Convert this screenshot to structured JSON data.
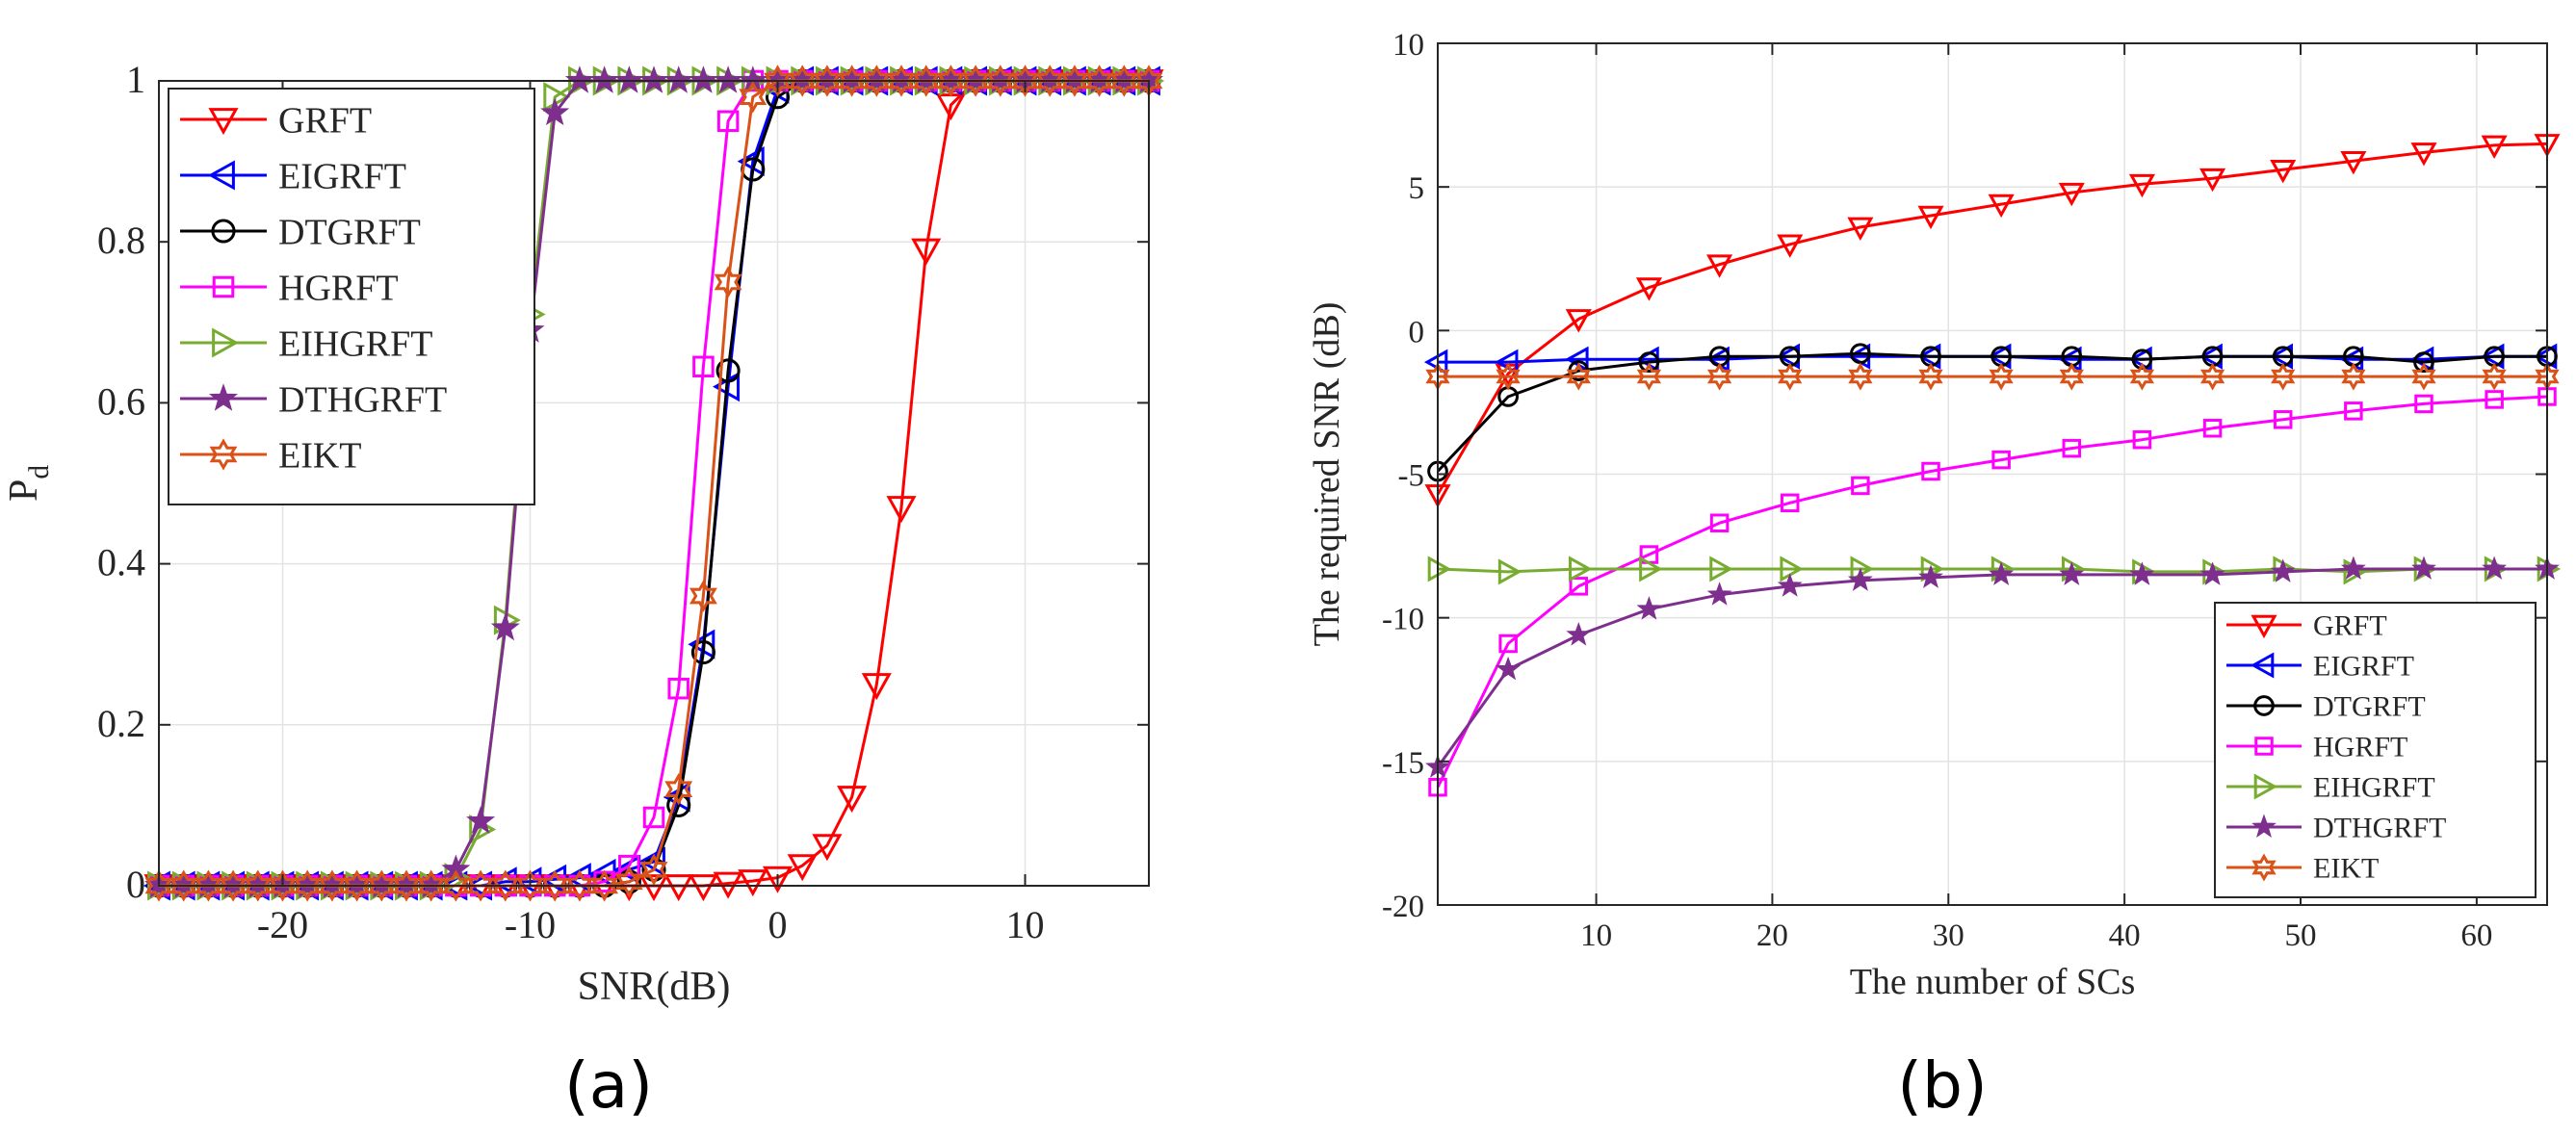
{
  "colors": {
    "GRFT": "#ff0000",
    "EIGRFT": "#0000ff",
    "DTGRFT": "#000000",
    "HGRFT": "#ff00ff",
    "EIHGRFT": "#77ac30",
    "DTHGRFT": "#7e2f8e",
    "EIKT": "#d95319"
  },
  "chart_data": [
    {
      "type": "line",
      "panel_label": "(a)",
      "title": "",
      "xlabel": "SNR(dB)",
      "ylabel": "P",
      "ylabel_subscript": "d",
      "xlim": [
        -25,
        15
      ],
      "ylim": [
        0,
        1
      ],
      "xticks": [
        -20,
        -10,
        0,
        10
      ],
      "xtick_labels": [
        "-20",
        "-10",
        "0",
        "10"
      ],
      "yticks": [
        0,
        0.2,
        0.4,
        0.6,
        0.8,
        1
      ],
      "ytick_labels": [
        "0",
        "0.2",
        "0.4",
        "0.6",
        "0.8",
        "1"
      ],
      "grid": true,
      "legend_position": "top-left",
      "x": [
        -25,
        -24,
        -23,
        -22,
        -21,
        -20,
        -19,
        -18,
        -17,
        -16,
        -15,
        -14,
        -13,
        -12,
        -11,
        -10,
        -9,
        -8,
        -7,
        -6,
        -5,
        -4,
        -3,
        -2,
        -1,
        0,
        1,
        2,
        3,
        4,
        5,
        6,
        7,
        8,
        9,
        10,
        11,
        12,
        13,
        14,
        15
      ],
      "series": [
        {
          "name": "GRFT",
          "marker": "triangle-down",
          "values": [
            0,
            0,
            0,
            0,
            0,
            0,
            0,
            0,
            0,
            0,
            0,
            0,
            0,
            0,
            0,
            0,
            0,
            0,
            0,
            0,
            0,
            0,
            0,
            0.003,
            0.006,
            0.01,
            0.025,
            0.05,
            0.11,
            0.25,
            0.47,
            0.79,
            0.97,
            1,
            1,
            1,
            1,
            1,
            1,
            1,
            1
          ]
        },
        {
          "name": "EIGRFT",
          "marker": "triangle-left",
          "values": [
            0,
            0,
            0,
            0,
            0,
            0,
            0,
            0,
            0,
            0,
            0,
            0,
            0,
            0,
            0.005,
            0.005,
            0.008,
            0.01,
            0.015,
            0.02,
            0.03,
            0.11,
            0.3,
            0.62,
            0.9,
            0.99,
            1,
            1,
            1,
            1,
            1,
            1,
            1,
            1,
            1,
            1,
            1,
            1,
            1,
            1,
            1
          ]
        },
        {
          "name": "DTGRFT",
          "marker": "circle",
          "values": [
            0,
            0,
            0,
            0,
            0,
            0,
            0,
            0,
            0,
            0,
            0,
            0,
            0,
            0,
            0,
            0,
            0,
            0,
            0,
            0.005,
            0.02,
            0.1,
            0.29,
            0.64,
            0.89,
            0.98,
            1,
            1,
            1,
            1,
            1,
            1,
            1,
            1,
            1,
            1,
            1,
            1,
            1,
            1,
            1
          ]
        },
        {
          "name": "HGRFT",
          "marker": "square",
          "values": [
            0,
            0,
            0,
            0,
            0,
            0,
            0,
            0,
            0,
            0,
            0,
            0,
            0,
            0,
            0,
            0,
            0,
            0,
            0.005,
            0.025,
            0.085,
            0.245,
            0.645,
            0.95,
            1,
            1,
            1,
            1,
            1,
            1,
            1,
            1,
            1,
            1,
            1,
            1,
            1,
            1,
            1,
            1,
            1
          ]
        },
        {
          "name": "EIHGRFT",
          "marker": "triangle-right",
          "values": [
            0,
            0,
            0,
            0,
            0,
            0,
            0,
            0,
            0,
            0,
            0,
            0,
            0.01,
            0.07,
            0.33,
            0.71,
            0.98,
            1,
            1,
            1,
            1,
            1,
            1,
            1,
            1,
            1,
            1,
            1,
            1,
            1,
            1,
            1,
            1,
            1,
            1,
            1,
            1,
            1,
            1,
            1,
            1
          ]
        },
        {
          "name": "DTHGRFT",
          "marker": "star",
          "values": [
            0,
            0,
            0,
            0,
            0,
            0,
            0,
            0,
            0,
            0,
            0,
            0,
            0.02,
            0.08,
            0.32,
            0.69,
            0.96,
            1,
            1,
            1,
            1,
            1,
            1,
            1,
            1,
            1,
            1,
            1,
            1,
            1,
            1,
            1,
            1,
            1,
            1,
            1,
            1,
            1,
            1,
            1,
            1
          ]
        },
        {
          "name": "EIKT",
          "marker": "hexagram",
          "values": [
            0,
            0,
            0,
            0,
            0,
            0,
            0,
            0,
            0,
            0,
            0,
            0,
            0,
            0,
            0,
            0,
            0,
            0,
            0,
            0.005,
            0.02,
            0.12,
            0.36,
            0.75,
            0.98,
            1,
            1,
            1,
            1,
            1,
            1,
            1,
            1,
            1,
            1,
            1,
            1,
            1,
            1,
            1,
            1
          ]
        }
      ]
    },
    {
      "type": "line",
      "panel_label": "(b)",
      "title": "",
      "xlabel": "The number of SCs",
      "ylabel": "The required SNR (dB)",
      "xlim": [
        1,
        64
      ],
      "ylim": [
        -20,
        10
      ],
      "xticks": [
        10,
        20,
        30,
        40,
        50,
        60
      ],
      "xtick_labels": [
        "10",
        "20",
        "30",
        "40",
        "50",
        "60"
      ],
      "yticks": [
        -20,
        -15,
        -10,
        -5,
        0,
        5,
        10
      ],
      "ytick_labels": [
        "-20",
        "-15",
        "-10",
        "-5",
        "0",
        "5",
        "10"
      ],
      "grid": true,
      "legend_position": "bottom-right",
      "x": [
        1,
        5,
        9,
        13,
        17,
        21,
        25,
        29,
        33,
        37,
        41,
        45,
        49,
        53,
        57,
        61,
        64
      ],
      "series": [
        {
          "name": "GRFT",
          "marker": "triangle-down",
          "values": [
            -5.7,
            -1.5,
            0.4,
            1.5,
            2.3,
            3.0,
            3.6,
            4.0,
            4.4,
            4.8,
            5.1,
            5.3,
            5.6,
            5.9,
            6.2,
            6.45,
            6.5
          ]
        },
        {
          "name": "EIGRFT",
          "marker": "triangle-left",
          "values": [
            -1.1,
            -1.1,
            -1.0,
            -1.0,
            -1.0,
            -0.9,
            -0.9,
            -0.9,
            -0.9,
            -1.0,
            -1.0,
            -0.9,
            -0.9,
            -1.0,
            -1.0,
            -0.9,
            -0.9
          ]
        },
        {
          "name": "DTGRFT",
          "marker": "circle",
          "values": [
            -4.9,
            -2.3,
            -1.4,
            -1.1,
            -0.9,
            -0.9,
            -0.8,
            -0.9,
            -0.9,
            -0.9,
            -1.0,
            -0.9,
            -0.9,
            -0.9,
            -1.1,
            -0.9,
            -0.9
          ]
        },
        {
          "name": "HGRFT",
          "marker": "square",
          "values": [
            -15.9,
            -10.9,
            -8.9,
            -7.8,
            -6.7,
            -6.0,
            -5.4,
            -4.9,
            -4.5,
            -4.1,
            -3.8,
            -3.4,
            -3.1,
            -2.8,
            -2.55,
            -2.4,
            -2.3
          ]
        },
        {
          "name": "EIHGRFT",
          "marker": "triangle-right",
          "values": [
            -8.3,
            -8.4,
            -8.3,
            -8.3,
            -8.3,
            -8.3,
            -8.3,
            -8.3,
            -8.3,
            -8.3,
            -8.4,
            -8.4,
            -8.3,
            -8.4,
            -8.3,
            -8.3,
            -8.3
          ]
        },
        {
          "name": "DTHGRFT",
          "marker": "star",
          "values": [
            -15.2,
            -11.8,
            -10.6,
            -9.7,
            -9.2,
            -8.9,
            -8.7,
            -8.6,
            -8.5,
            -8.5,
            -8.5,
            -8.5,
            -8.4,
            -8.3,
            -8.3,
            -8.3,
            -8.3
          ]
        },
        {
          "name": "EIKT",
          "marker": "hexagram",
          "values": [
            -1.6,
            -1.6,
            -1.6,
            -1.6,
            -1.6,
            -1.6,
            -1.6,
            -1.6,
            -1.6,
            -1.6,
            -1.6,
            -1.6,
            -1.6,
            -1.6,
            -1.6,
            -1.6,
            -1.6
          ]
        }
      ]
    }
  ]
}
